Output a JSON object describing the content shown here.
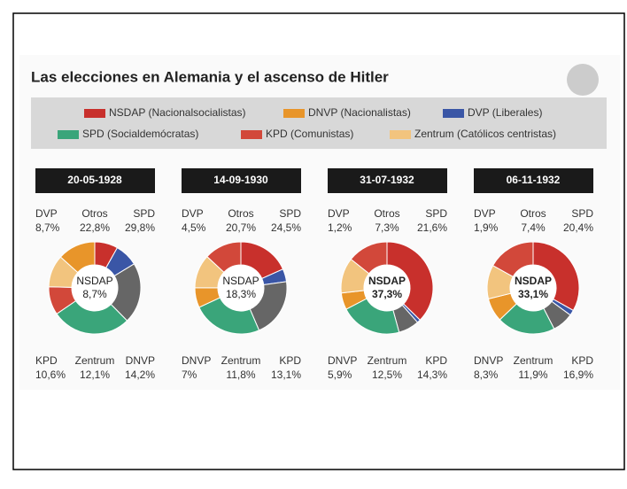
{
  "title": "Las elecciones en Alemania y el ascenso de Hitler",
  "legend": [
    {
      "name": "NSDAP (Nacionalsocialistas)",
      "color": "#c8302c"
    },
    {
      "name": "DNVP (Nacionalistas)",
      "color": "#e8952a"
    },
    {
      "name": "DVP (Liberales)",
      "color": "#3a56a6"
    },
    {
      "name": "SPD (Socialdemócratas)",
      "color": "#3aa57a"
    },
    {
      "name": "KPD (Comunistas)",
      "color": "#d2483a"
    },
    {
      "name": "Zentrum (Católicos centristas)",
      "color": "#f2c47e"
    }
  ],
  "chart_data": [
    {
      "type": "pie",
      "title": "20-05-1928",
      "categories": [
        "NSDAP",
        "DVP",
        "Otros",
        "SPD",
        "KPD",
        "Zentrum",
        "DNVP"
      ],
      "values": [
        8.7,
        8.7,
        22.8,
        29.8,
        10.6,
        12.1,
        14.2
      ],
      "value_labels": [
        "8,7%",
        "8,7%",
        "22,8%",
        "29,8%",
        "10,6%",
        "12,1%",
        "14,2%"
      ],
      "colors": [
        "#c8302c",
        "#3a56a6",
        "#666666",
        "#3aa57a",
        "#d2483a",
        "#f2c47e",
        "#e8952a"
      ]
    },
    {
      "type": "pie",
      "title": "14-09-1930",
      "categories": [
        "NSDAP",
        "DVP",
        "Otros",
        "SPD",
        "DNVP",
        "Zentrum",
        "KPD"
      ],
      "values": [
        18.3,
        4.5,
        20.7,
        24.5,
        7,
        11.8,
        13.1
      ],
      "value_labels": [
        "18,3%",
        "4,5%",
        "20,7%",
        "24,5%",
        "7%",
        "11,8%",
        "13,1%"
      ],
      "colors": [
        "#c8302c",
        "#3a56a6",
        "#666666",
        "#3aa57a",
        "#e8952a",
        "#f2c47e",
        "#d2483a"
      ]
    },
    {
      "type": "pie",
      "title": "31-07-1932",
      "categories": [
        "NSDAP",
        "DVP",
        "Otros",
        "SPD",
        "DNVP",
        "Zentrum",
        "KPD"
      ],
      "values": [
        37.3,
        1.2,
        7.3,
        21.6,
        5.9,
        12.5,
        14.3
      ],
      "value_labels": [
        "37,3%",
        "1,2%",
        "7,3%",
        "21,6%",
        "5,9%",
        "12,5%",
        "14,3%"
      ],
      "colors": [
        "#c8302c",
        "#3a56a6",
        "#666666",
        "#3aa57a",
        "#e8952a",
        "#f2c47e",
        "#d2483a"
      ]
    },
    {
      "type": "pie",
      "title": "06-11-1932",
      "categories": [
        "NSDAP",
        "DVP",
        "Otros",
        "SPD",
        "DNVP",
        "Zentrum",
        "KPD"
      ],
      "values": [
        33.1,
        1.9,
        7.4,
        20.4,
        8.3,
        11.9,
        16.9
      ],
      "value_labels": [
        "33,1%",
        "1,9%",
        "7,4%",
        "20,4%",
        "8,3%",
        "11,9%",
        "16,9%"
      ],
      "colors": [
        "#c8302c",
        "#3a56a6",
        "#666666",
        "#3aa57a",
        "#e8952a",
        "#f2c47e",
        "#d2483a"
      ]
    }
  ]
}
